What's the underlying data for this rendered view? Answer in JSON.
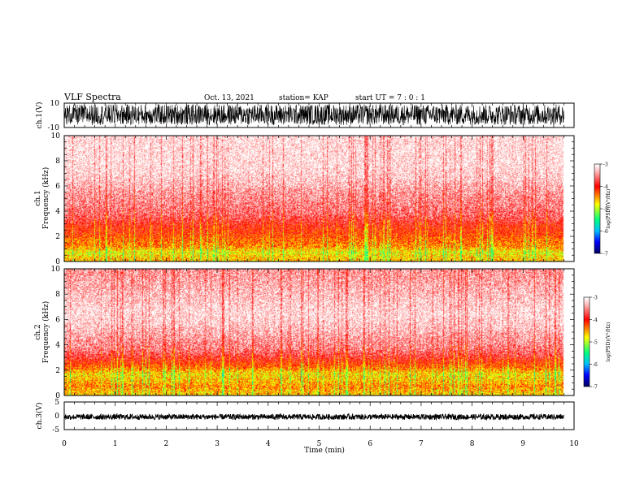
{
  "header": {
    "title": "VLF Spectra",
    "date": "Oct. 13, 2021",
    "station": "station= KAP",
    "start": "start  UT =   7 : 0  : 1"
  },
  "colors": {
    "background": "#ffffff",
    "axis": "#000000",
    "waveform": "#000000",
    "colormap": [
      "#000066",
      "#0000ff",
      "#00c0ff",
      "#00ff80",
      "#ffff00",
      "#ff0000",
      "#ffffff"
    ]
  },
  "chart_data": [
    {
      "type": "line",
      "panel": "ch1-waveform",
      "ylabel": "ch.1(V)",
      "ylim": [
        -10,
        10
      ],
      "yticks": [
        "10",
        "-10"
      ],
      "xlim": [
        0,
        10
      ],
      "x_extent_min": 9.8,
      "description_values": {
        "envelope_min": -8,
        "envelope_max": 9
      }
    },
    {
      "type": "heatmap",
      "panel": "ch1-spectrogram",
      "ylabel": "ch.1\nFrequency (kHz)",
      "ylim": [
        0,
        10
      ],
      "yticks": [
        "0",
        "2",
        "4",
        "6",
        "8",
        "10"
      ],
      "xlim": [
        0,
        10
      ],
      "x_extent_min": 9.8,
      "band_levels_kHz": [
        {
          "f": 0.25,
          "level": -4.6
        },
        {
          "f": 0.75,
          "level": -4.8
        },
        {
          "f": 1.25,
          "level": -4.4
        },
        {
          "f": 1.75,
          "level": -4.3
        },
        {
          "f": 2.25,
          "level": -4.1
        },
        {
          "f": 2.75,
          "level": -4.0
        },
        {
          "f": 3.25,
          "level": -3.8
        },
        {
          "f": 3.75,
          "level": -3.6
        },
        {
          "f": 4.5,
          "level": -3.5
        },
        {
          "f": 5.5,
          "level": -3.4
        },
        {
          "f": 6.5,
          "level": -3.2
        },
        {
          "f": 7.5,
          "level": -3.1
        },
        {
          "f": 8.5,
          "level": -3.1
        },
        {
          "f": 9.5,
          "level": -3.1
        }
      ],
      "colorbar": {
        "label": "log(PSD)(V²/Hz)",
        "min": -7,
        "max": -3,
        "ticks": [
          "-3",
          "-4",
          "-5",
          "-6",
          "-7"
        ]
      }
    },
    {
      "type": "heatmap",
      "panel": "ch2-spectrogram",
      "ylabel": "ch.2\nFrequency (kHz)",
      "ylim": [
        0,
        10
      ],
      "yticks": [
        "0",
        "2",
        "4",
        "6",
        "8",
        "10"
      ],
      "xlim": [
        0,
        10
      ],
      "x_extent_min": 9.8,
      "band_levels_kHz": [
        {
          "f": 0.25,
          "level": -4.6
        },
        {
          "f": 0.75,
          "level": -4.4
        },
        {
          "f": 1.25,
          "level": -4.6
        },
        {
          "f": 1.75,
          "level": -4.7
        },
        {
          "f": 2.25,
          "level": -4.3
        },
        {
          "f": 2.75,
          "level": -4.0
        },
        {
          "f": 3.25,
          "level": -3.7
        },
        {
          "f": 3.75,
          "level": -3.5
        },
        {
          "f": 4.5,
          "level": -3.4
        },
        {
          "f": 5.5,
          "level": -3.2
        },
        {
          "f": 6.5,
          "level": -3.1
        },
        {
          "f": 7.5,
          "level": -3.2
        },
        {
          "f": 8.5,
          "level": -3.3
        },
        {
          "f": 9.5,
          "level": -3.4
        }
      ],
      "colorbar": {
        "label": "log(PSD)(V²/Hz)",
        "min": -7,
        "max": -3,
        "ticks": [
          "-3",
          "-4",
          "-5",
          "-6",
          "-7"
        ]
      }
    },
    {
      "type": "line",
      "panel": "ch3-waveform",
      "ylabel": "ch.3(V)",
      "ylim": [
        -5,
        5
      ],
      "yticks": [
        "5",
        "0",
        "-5"
      ],
      "xlim": [
        0,
        10
      ],
      "x_extent_min": 9.8,
      "description_values": {
        "envelope_min": -1.4,
        "envelope_max": 0.6
      }
    }
  ],
  "xaxis": {
    "label": "Time  (min)",
    "ticks": [
      "0",
      "1",
      "2",
      "3",
      "4",
      "5",
      "6",
      "7",
      "8",
      "9",
      "10"
    ]
  }
}
